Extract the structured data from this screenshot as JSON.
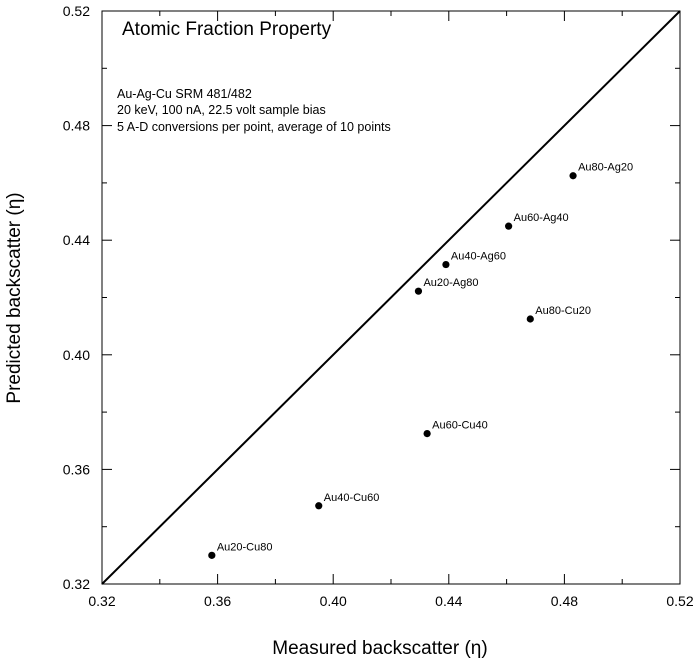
{
  "chart_data": {
    "type": "scatter",
    "title": "Atomic Fraction Property",
    "notes": [
      "Au-Ag-Cu SRM 481/482",
      "20 keV, 100 nA, 22.5 volt sample bias",
      "5 A-D conversions per point, average of 10 points"
    ],
    "xlabel": "Measured backscatter (η)",
    "ylabel": "Predicted backscatter (η)",
    "xlim": [
      0.32,
      0.52
    ],
    "ylim": [
      0.32,
      0.52
    ],
    "x_ticks": [
      "0.32",
      "0.36",
      "0.40",
      "0.44",
      "0.48",
      "0.52"
    ],
    "y_ticks": [
      "0.32",
      "0.36",
      "0.40",
      "0.44",
      "0.48",
      "0.52"
    ],
    "reference_line": {
      "from": [
        0.32,
        0.32
      ],
      "to": [
        0.52,
        0.52
      ]
    },
    "grid": false,
    "marker_color": "#000000",
    "points": [
      {
        "label": "Au80-Ag20",
        "x": 0.483,
        "y": 0.4625
      },
      {
        "label": "Au60-Ag40",
        "x": 0.4607,
        "y": 0.4449
      },
      {
        "label": "Au40-Ag60",
        "x": 0.439,
        "y": 0.4315
      },
      {
        "label": "Au20-Ag80",
        "x": 0.4295,
        "y": 0.4222
      },
      {
        "label": "Au80-Cu20",
        "x": 0.4682,
        "y": 0.4125
      },
      {
        "label": "Au60-Cu40",
        "x": 0.4325,
        "y": 0.3725
      },
      {
        "label": "Au40-Cu60",
        "x": 0.395,
        "y": 0.3473
      },
      {
        "label": "Au20-Cu80",
        "x": 0.358,
        "y": 0.33
      }
    ]
  }
}
